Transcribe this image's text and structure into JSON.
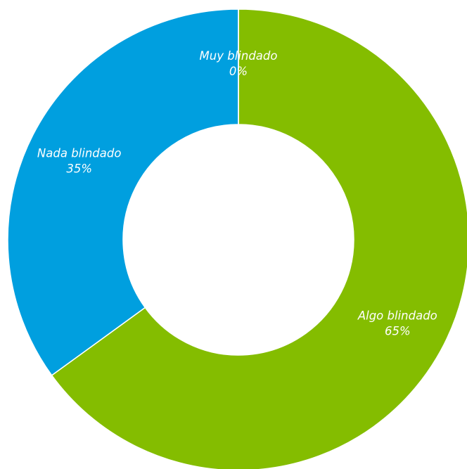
{
  "chart_data": {
    "type": "pie",
    "variant": "donut",
    "slices": [
      {
        "label": "Muy blindado",
        "value": 0,
        "value_label": "0%",
        "color": "#009fdf"
      },
      {
        "label": "Algo blindado",
        "value": 65,
        "value_label": "65%",
        "color": "#84bd00"
      },
      {
        "label": "Nada blindado",
        "value": 35,
        "value_label": "35%",
        "color": "#009fdf"
      }
    ],
    "start": "top",
    "direction": "clockwise",
    "slice_border_color": "#ffffff",
    "label_color": "#ffffff",
    "legend": "none"
  }
}
